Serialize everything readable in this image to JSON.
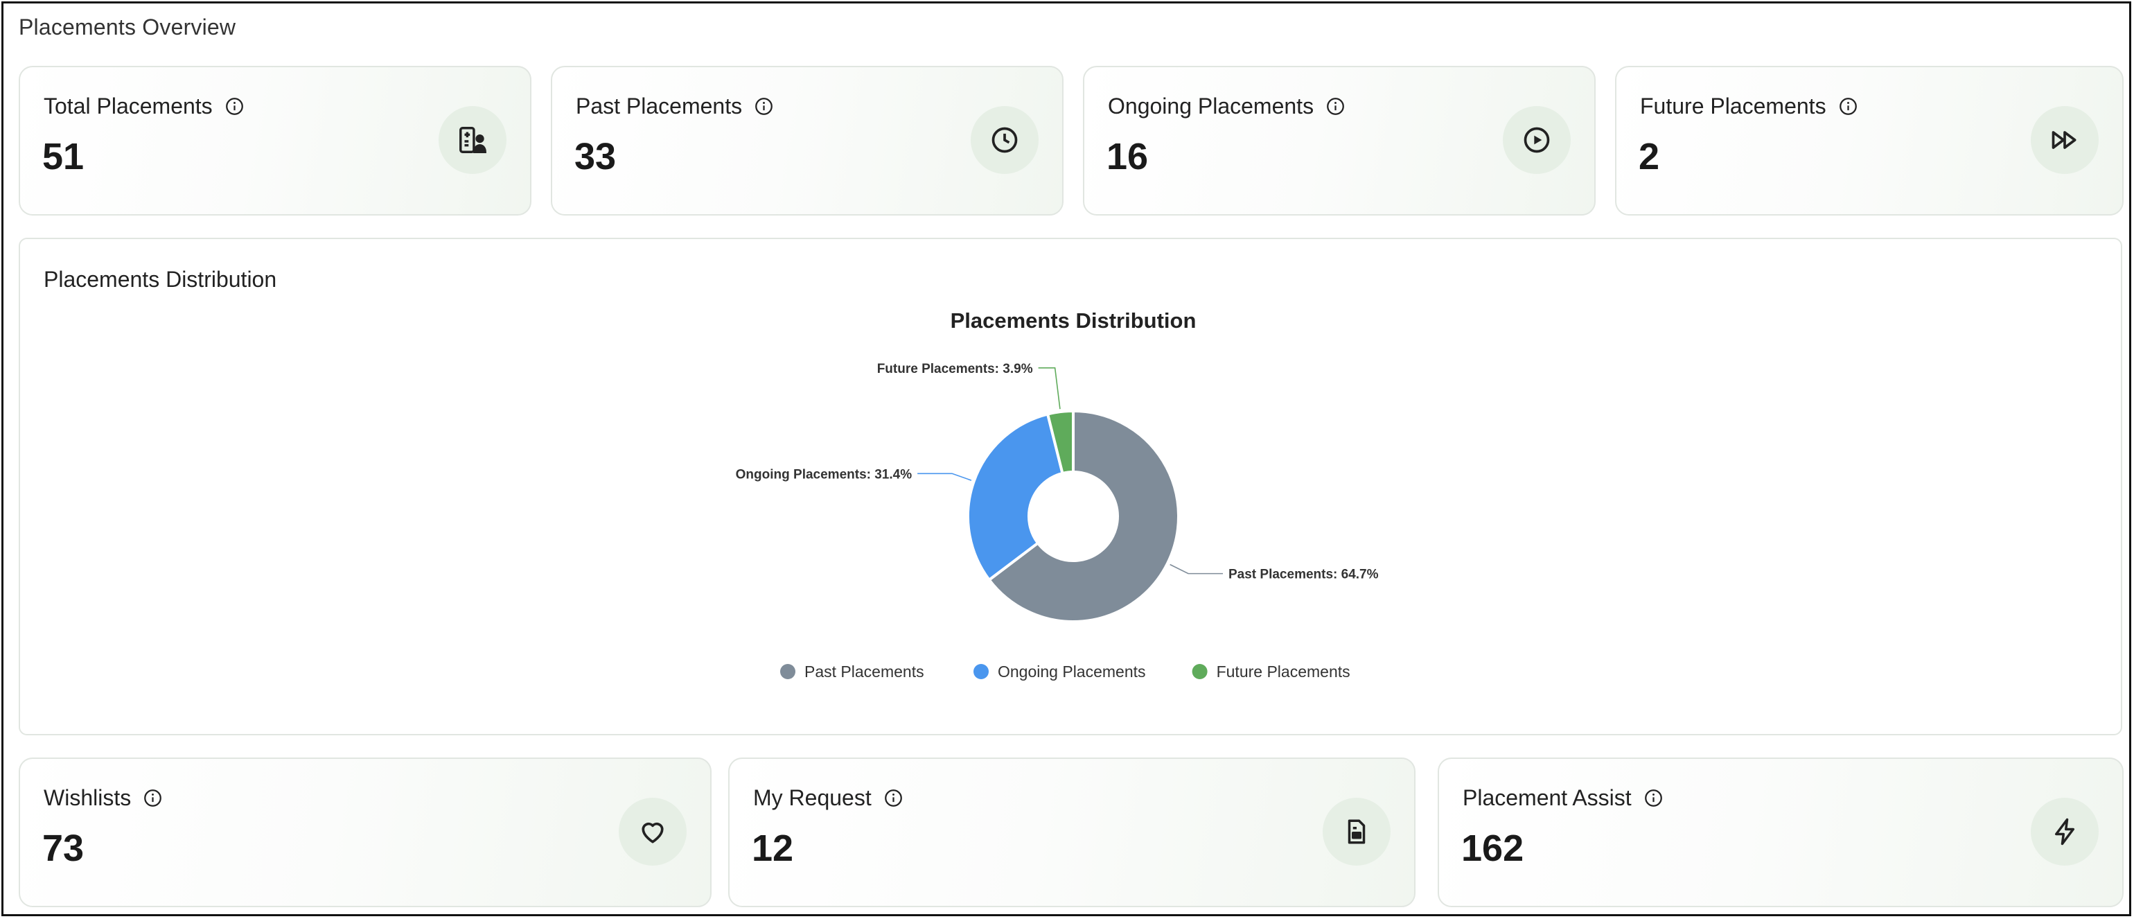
{
  "page": {
    "title": "Placements Overview"
  },
  "colors": {
    "past": "#7f8c99",
    "ongoing": "#4a96ee",
    "future": "#5fab5b",
    "card_badge": "#e6efe5"
  },
  "top_cards": [
    {
      "label": "Total Placements",
      "value": "51",
      "icon": "hospital-user-icon"
    },
    {
      "label": "Past Placements",
      "value": "33",
      "icon": "clock-icon"
    },
    {
      "label": "Ongoing Placements",
      "value": "16",
      "icon": "play-circle-icon"
    },
    {
      "label": "Future Placements",
      "value": "2",
      "icon": "fast-forward-icon"
    }
  ],
  "distribution": {
    "panel_title": "Placements Distribution"
  },
  "chart_data": {
    "type": "pie",
    "title": "Placements Distribution",
    "donut": true,
    "categories": [
      "Past Placements",
      "Ongoing Placements",
      "Future Placements"
    ],
    "values": [
      64.7,
      31.4,
      3.9
    ],
    "labels": [
      "Past Placements: 64.7%",
      "Ongoing Placements: 31.4%",
      "Future Placements: 3.9%"
    ],
    "legend_position": "bottom"
  },
  "bottom_cards": [
    {
      "label": "Wishlists",
      "value": "73",
      "icon": "heart-icon"
    },
    {
      "label": "My Request",
      "value": "12",
      "icon": "document-icon"
    },
    {
      "label": "Placement Assist",
      "value": "162",
      "icon": "lightning-icon"
    }
  ]
}
